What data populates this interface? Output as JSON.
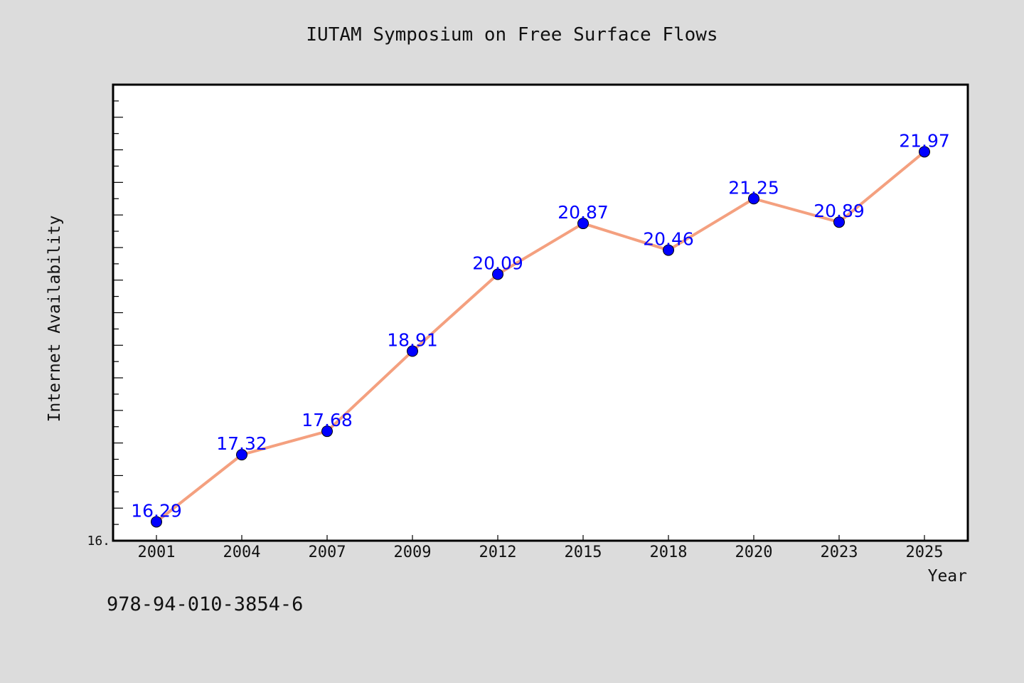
{
  "page": {
    "title": "IUTAM Symposium on Free Surface Flows",
    "footer_id": "978-94-010-3854-6"
  },
  "colors": {
    "background": "#dcdcdc",
    "plot_area": "#ffffff",
    "line": "#f4a07f",
    "marker": "#0000ff",
    "label": "#0000ff"
  },
  "chart_data": {
    "type": "line",
    "title": "IUTAM Symposium on Free Surface Flows",
    "xlabel": "Year",
    "ylabel": "Internet Availability",
    "categories": [
      "2001",
      "2004",
      "2007",
      "2009",
      "2012",
      "2015",
      "2018",
      "2020",
      "2023",
      "2025"
    ],
    "values": [
      16.29,
      17.32,
      17.68,
      18.91,
      20.09,
      20.87,
      20.46,
      21.25,
      20.89,
      21.97
    ],
    "data_labels": [
      "16.29",
      "17.32",
      "17.68",
      "18.91",
      "20.09",
      "20.87",
      "20.46",
      "21.25",
      "20.89",
      "21.97"
    ],
    "ylim": [
      16.0,
      23.0
    ],
    "y_tick_labels": [
      "16."
    ],
    "grid": false,
    "legend": "none",
    "marker": "circle"
  }
}
